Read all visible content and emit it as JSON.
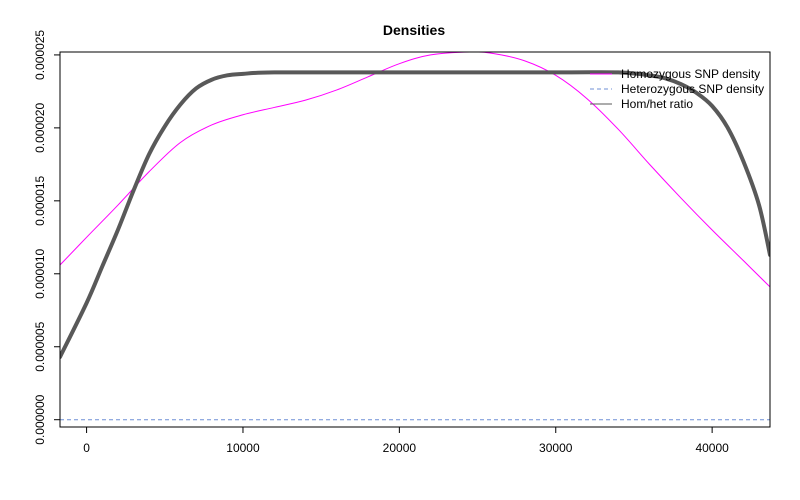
{
  "chart_data": {
    "type": "line",
    "title": "Densities",
    "xlabel": "",
    "ylabel": "",
    "xlim": [
      -1700,
      43700
    ],
    "ylim": [
      -5e-07,
      2.52e-05
    ],
    "x_ticks": [
      0,
      10000,
      20000,
      30000,
      40000
    ],
    "x_tick_labels": [
      "0",
      "10000",
      "20000",
      "30000",
      "40000"
    ],
    "y_ticks": [
      0,
      5e-06,
      1e-05,
      1.5e-05,
      2e-05,
      2.5e-05
    ],
    "y_tick_labels": [
      "0.000000",
      "0.000005",
      "0.000010",
      "0.000015",
      "0.000020",
      "0.000025"
    ],
    "grid": false,
    "legend_position": "top-right",
    "legend": [
      {
        "label": "Homozygous SNP density",
        "color": "#ff00ff",
        "style": "solid"
      },
      {
        "label": "Heterozygous SNP density",
        "color": "#6f8fd6",
        "style": "dashed"
      },
      {
        "label": "Hom/het ratio",
        "color": "#595959",
        "style": "solid"
      }
    ],
    "series": [
      {
        "name": "Homozygous SNP density",
        "color": "#ff00ff",
        "style": "solid",
        "width": 1,
        "points": [
          [
            -1700,
            1.06e-05
          ],
          [
            0,
            1.25e-05
          ],
          [
            2000,
            1.47e-05
          ],
          [
            4000,
            1.7e-05
          ],
          [
            6000,
            1.9e-05
          ],
          [
            8000,
            2.02e-05
          ],
          [
            10000,
            2.09e-05
          ],
          [
            12000,
            2.14e-05
          ],
          [
            14000,
            2.19e-05
          ],
          [
            16000,
            2.26e-05
          ],
          [
            18000,
            2.35e-05
          ],
          [
            20000,
            2.44e-05
          ],
          [
            22000,
            2.5e-05
          ],
          [
            24500,
            2.52e-05
          ],
          [
            26000,
            2.51e-05
          ],
          [
            28000,
            2.46e-05
          ],
          [
            30000,
            2.36e-05
          ],
          [
            32000,
            2.2e-05
          ],
          [
            34000,
            1.99e-05
          ],
          [
            36000,
            1.75e-05
          ],
          [
            38000,
            1.52e-05
          ],
          [
            40000,
            1.3e-05
          ],
          [
            42000,
            1.09e-05
          ],
          [
            43700,
            9.1e-06
          ]
        ]
      },
      {
        "name": "Heterozygous SNP density",
        "color": "#6f8fd6",
        "style": "dashed",
        "width": 1,
        "points": [
          [
            -1700,
            0
          ],
          [
            43700,
            0
          ]
        ]
      },
      {
        "name": "Hom/het ratio",
        "color": "#595959",
        "style": "solid",
        "width": 4,
        "points": [
          [
            -1700,
            4.3e-06
          ],
          [
            0,
            8e-06
          ],
          [
            1000,
            1.05e-05
          ],
          [
            2000,
            1.3e-05
          ],
          [
            3000,
            1.57e-05
          ],
          [
            4000,
            1.82e-05
          ],
          [
            5000,
            2.01e-05
          ],
          [
            6000,
            2.16e-05
          ],
          [
            7000,
            2.27e-05
          ],
          [
            8000,
            2.33e-05
          ],
          [
            9000,
            2.36e-05
          ],
          [
            10000,
            2.37e-05
          ],
          [
            12000,
            2.38e-05
          ],
          [
            20000,
            2.38e-05
          ],
          [
            30000,
            2.38e-05
          ],
          [
            34000,
            2.38e-05
          ],
          [
            36000,
            2.36e-05
          ],
          [
            37000,
            2.34e-05
          ],
          [
            38000,
            2.3e-05
          ],
          [
            39000,
            2.24e-05
          ],
          [
            40000,
            2.15e-05
          ],
          [
            41000,
            2e-05
          ],
          [
            42000,
            1.77e-05
          ],
          [
            43000,
            1.47e-05
          ],
          [
            43700,
            1.13e-05
          ]
        ]
      }
    ]
  }
}
